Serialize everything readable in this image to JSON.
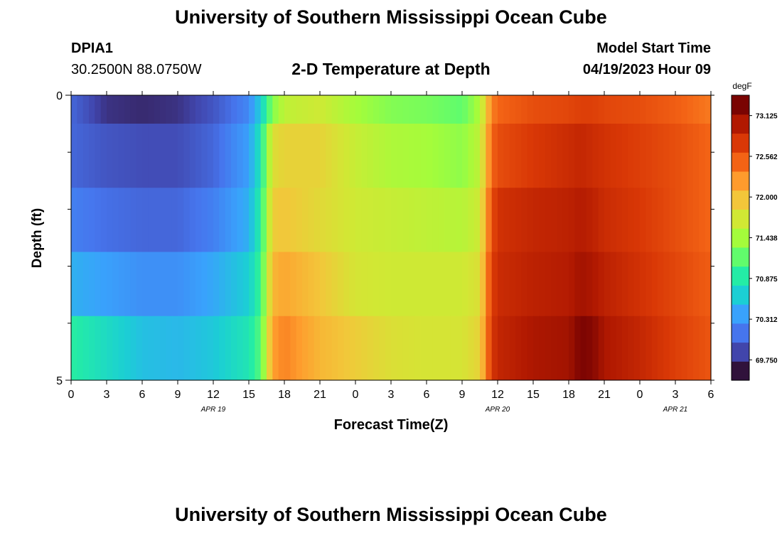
{
  "header": {
    "title": "University of Southern Mississippi Ocean Cube",
    "station": "DPIA1",
    "coords": "30.2500N  88.0750W",
    "plot_title": "2-D Temperature at Depth",
    "model_label": "Model Start Time",
    "model_time": "04/19/2023 Hour 09"
  },
  "footer": {
    "title": "University of Southern Mississippi Ocean Cube"
  },
  "chart_data": {
    "type": "heatmap",
    "title": "2-D Temperature at Depth",
    "xlabel": "Forecast Time(Z)",
    "ylabel": "Depth (ft)",
    "y_ticks": [
      "0",
      "5"
    ],
    "y_range": [
      0,
      5
    ],
    "x_hours": [
      0,
      3,
      6,
      9,
      12,
      15,
      18,
      21,
      24,
      27,
      30,
      33,
      36,
      39,
      42,
      45,
      48,
      51,
      54
    ],
    "x_tick_labels": [
      "0",
      "3",
      "6",
      "9",
      "12",
      "15",
      "18",
      "21",
      "0",
      "3",
      "6",
      "9",
      "12",
      "15",
      "18",
      "21",
      "0",
      "3",
      "6"
    ],
    "date_labels": [
      {
        "text": "APR 19",
        "hour": 12
      },
      {
        "text": "APR 20",
        "hour": 36
      },
      {
        "text": "APR 21",
        "hour": 51
      }
    ],
    "depth_rows": 5,
    "colorbar": {
      "unit": "degF",
      "min": 69.469,
      "max": 73.406,
      "tick_labels": [
        "73.125",
        "72.562",
        "72.000",
        "71.438",
        "70.875",
        "70.312",
        "69.750"
      ],
      "colors": [
        "#30123b",
        "#4145ab",
        "#4675ed",
        "#39a2fc",
        "#1bcfd4",
        "#24eca6",
        "#61fc6c",
        "#a4fc3b",
        "#d1e834",
        "#f3c63a",
        "#fe9b2d",
        "#f36315",
        "#d93806",
        "#b11901",
        "#7a0402"
      ]
    },
    "profile_hours": [
      0,
      3,
      6,
      9,
      12,
      15,
      16,
      17,
      18,
      21,
      24,
      27,
      30,
      33,
      34.5,
      35.5,
      36,
      39,
      42,
      43,
      44,
      45,
      48,
      51,
      54
    ],
    "profiles": [
      [
        69.95,
        69.65,
        69.6,
        69.65,
        69.85,
        70.15,
        70.6,
        71.3,
        71.6,
        71.7,
        71.45,
        71.3,
        71.25,
        71.15,
        71.5,
        72.4,
        72.55,
        72.7,
        72.75,
        72.8,
        72.8,
        72.75,
        72.7,
        72.6,
        72.45
      ],
      [
        69.95,
        69.85,
        69.8,
        69.8,
        69.95,
        70.3,
        70.8,
        71.8,
        71.9,
        71.9,
        71.65,
        71.5,
        71.45,
        71.35,
        71.6,
        72.55,
        72.7,
        72.85,
        72.95,
        73.0,
        72.95,
        72.9,
        72.8,
        72.7,
        72.55
      ],
      [
        70.1,
        70.0,
        69.95,
        69.95,
        70.1,
        70.4,
        70.9,
        71.95,
        72.0,
        71.85,
        71.7,
        71.65,
        71.6,
        71.55,
        71.7,
        72.7,
        72.9,
        73.0,
        73.05,
        73.1,
        73.05,
        72.95,
        72.85,
        72.7,
        72.55
      ],
      [
        70.4,
        70.3,
        70.2,
        70.2,
        70.35,
        70.6,
        71.0,
        72.1,
        72.2,
        72.0,
        71.75,
        71.7,
        71.7,
        71.7,
        71.8,
        72.8,
        72.95,
        73.05,
        73.1,
        73.2,
        73.15,
        73.05,
        72.9,
        72.75,
        72.6
      ],
      [
        70.9,
        70.7,
        70.5,
        70.45,
        70.55,
        70.8,
        71.1,
        72.25,
        72.4,
        72.1,
        71.95,
        71.8,
        71.75,
        71.75,
        71.9,
        72.85,
        73.0,
        73.15,
        73.2,
        73.4,
        73.35,
        73.15,
        73.0,
        72.8,
        72.65
      ]
    ]
  }
}
